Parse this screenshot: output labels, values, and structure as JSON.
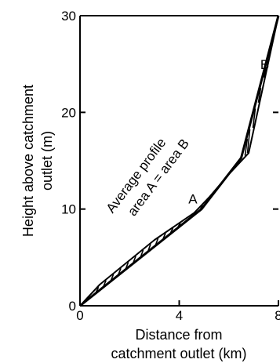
{
  "chart_data": {
    "type": "line",
    "title": "",
    "xlabel_lines": [
      "Distance from",
      "catchment outlet  (km)"
    ],
    "ylabel_lines": [
      "Height above catchment",
      "outlet  (m)"
    ],
    "xlim": [
      0,
      8
    ],
    "ylim": [
      0,
      30
    ],
    "x_ticks": [
      0,
      4,
      8
    ],
    "y_ticks": [
      0,
      10,
      20,
      30
    ],
    "x_tick_labels": [
      "0",
      "4",
      "8"
    ],
    "y_tick_labels": [
      "0",
      "10",
      "20",
      "30"
    ],
    "grid": false,
    "series": [
      {
        "x": [
          0,
          0.8,
          3.0,
          4.6,
          5.2,
          6.0,
          6.8,
          8.0
        ],
        "y": [
          0,
          2.2,
          6.8,
          9.6,
          11.2,
          13.6,
          15.8,
          30.0
        ]
      },
      {
        "x": [
          0,
          4.9,
          6.5,
          8.0
        ],
        "y": [
          0,
          10.0,
          15.3,
          30.0
        ]
      }
    ],
    "annotations": [
      {
        "text": "Average profile",
        "x": 2.4,
        "y": 13.2,
        "rotation_deg": -53
      },
      {
        "text": "area A = area B",
        "x": 3.3,
        "y": 13.0,
        "rotation_deg": -53
      },
      {
        "text": "A",
        "x": 4.55,
        "y": 10.6
      },
      {
        "text": "B",
        "x": 7.45,
        "y": 24.5
      }
    ],
    "hatched_regions": [
      {
        "label": "A",
        "between": "profile above average",
        "x_range": [
          0.4,
          6.8
        ]
      },
      {
        "label": "B",
        "between": "average above profile",
        "x_range": [
          6.8,
          8.0
        ]
      }
    ]
  }
}
